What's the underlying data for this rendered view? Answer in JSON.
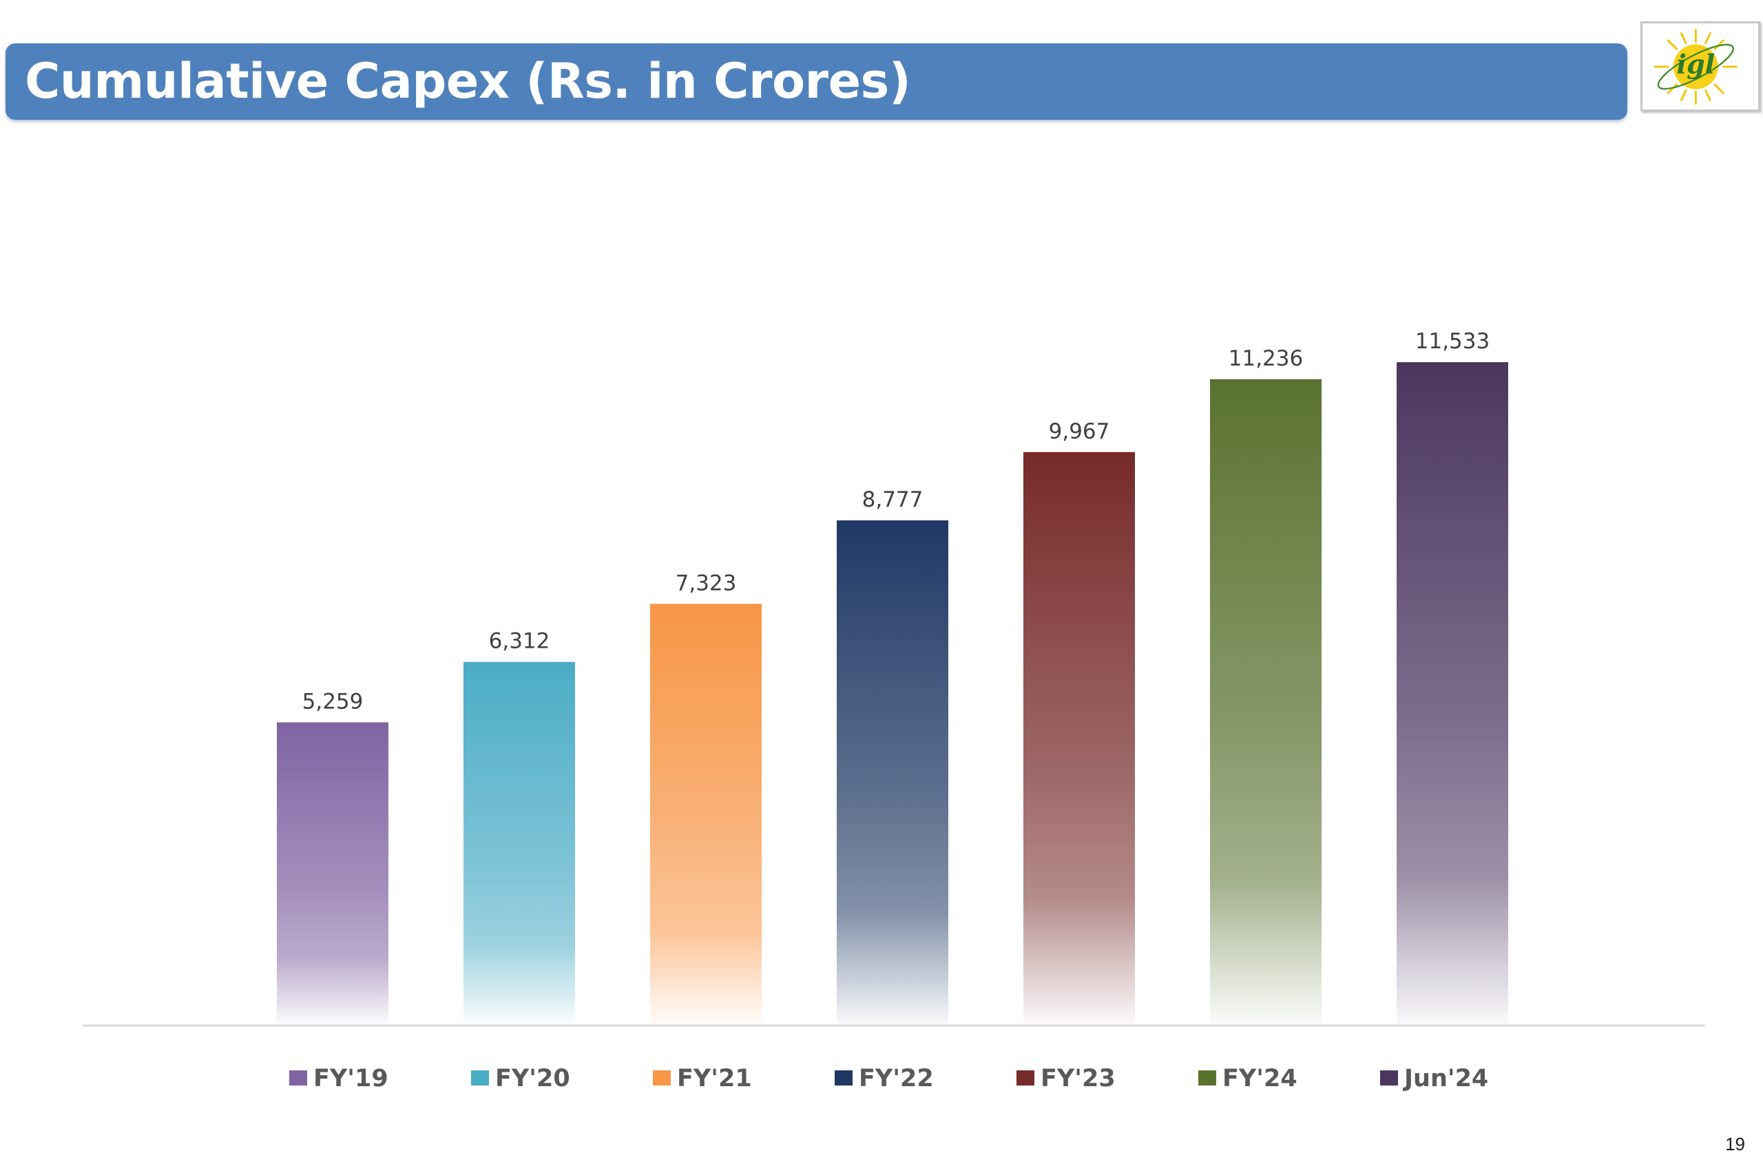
{
  "slide": {
    "title": "Cumulative Capex (Rs. in Crores)",
    "page_number": "19",
    "logo": {
      "name": "igl-logo",
      "text": "igl"
    }
  },
  "chart_data": {
    "type": "bar",
    "title": "",
    "xlabel": "",
    "ylabel": "",
    "categories": [
      "FY'19",
      "FY'20",
      "FY'21",
      "FY'22",
      "FY'23",
      "FY'24",
      "Jun'24"
    ],
    "series": [
      {
        "values": [
          5259,
          6312,
          7323,
          8777,
          9967,
          11236,
          11533
        ]
      }
    ],
    "data_labels": [
      "5,259",
      "6,312",
      "7,323",
      "8,777",
      "9,967",
      "11,236",
      "11,533"
    ],
    "colors": [
      "#8064a2",
      "#4bacc6",
      "#f79646",
      "#1f3864",
      "#772a2a",
      "#5a7230",
      "#4b3660"
    ],
    "legend": {
      "position": "bottom",
      "entries": [
        "FY'19",
        "FY'20",
        "FY'21",
        "FY'22",
        "FY'23",
        "FY'24",
        "Jun'24"
      ]
    },
    "ylim": [
      0,
      12000
    ],
    "grid": false,
    "y_axis_visible": false
  }
}
